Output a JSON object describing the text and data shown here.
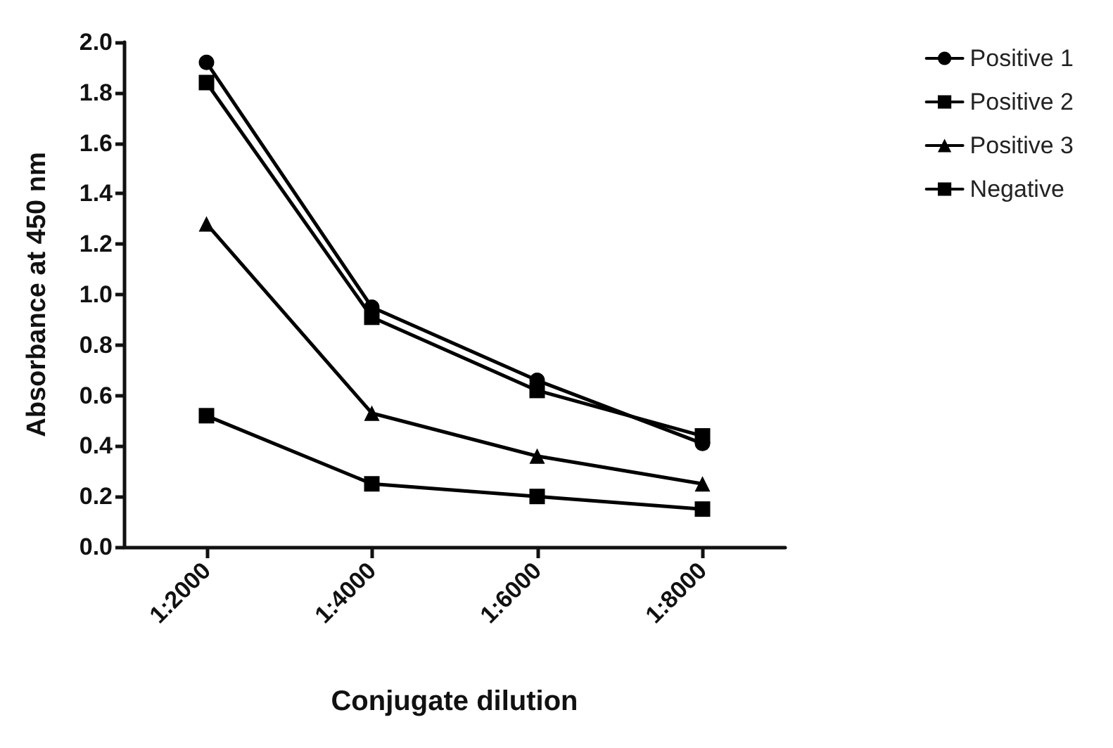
{
  "chart_data": {
    "type": "line",
    "xlabel": "Conjugate dilution",
    "ylabel": "Absorbance at 450 nm",
    "categories": [
      "1:2000",
      "1:4000",
      "1:6000",
      "1:8000"
    ],
    "series": [
      {
        "name": "Positive 1",
        "color": "#000000",
        "marker": "circle",
        "values": [
          1.92,
          0.95,
          0.66,
          0.41
        ]
      },
      {
        "name": "Positive 2",
        "color": "#000000",
        "marker": "square",
        "values": [
          1.84,
          0.91,
          0.62,
          0.44
        ]
      },
      {
        "name": "Positive 3",
        "color": "#000000",
        "marker": "triangle",
        "values": [
          1.28,
          0.53,
          0.36,
          0.25
        ]
      },
      {
        "name": "Negative",
        "color": "#000000",
        "marker": "square",
        "values": [
          0.52,
          0.25,
          0.2,
          0.15
        ]
      }
    ],
    "ylim": [
      0,
      2
    ],
    "yticks": [
      {
        "value": 0,
        "label": "0.0"
      },
      0.2,
      0.4,
      0.6,
      0.8,
      {
        "value": 1,
        "label": "1.0"
      },
      1.2,
      1.4,
      1.6,
      1.8,
      {
        "value": 2,
        "label": "2.0"
      }
    ],
    "grid": false,
    "legend": "top right",
    "line_style": "solid"
  }
}
